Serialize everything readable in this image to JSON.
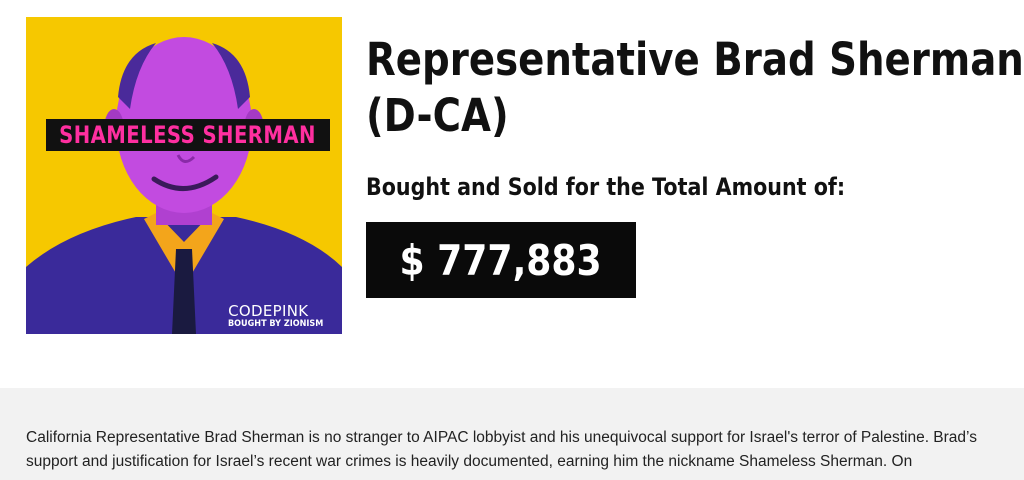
{
  "poster": {
    "banner_text": "SHAMELESS SHERMAN",
    "brand_name": "CODEPINK",
    "brand_tag": "BOUGHT BY ZIONISM",
    "colors": {
      "background": "#f6c800",
      "banner_text": "#ff2fa0",
      "banner_bg": "#111111"
    }
  },
  "header": {
    "title_line1": "Representative Brad Sherman",
    "title_line2": "(D-CA)",
    "subtitle": "Bought and Sold for the Total Amount of:",
    "amount": "$ 777,883"
  },
  "description": {
    "text": "California Representative Brad Sherman is no stranger to AIPAC lobbyist and his unequivocal support for Israel's terror of Palestine. Brad’s support and justification for Israel’s recent war crimes is heavily documented, earning  him the nickname Shameless Sherman. On"
  }
}
